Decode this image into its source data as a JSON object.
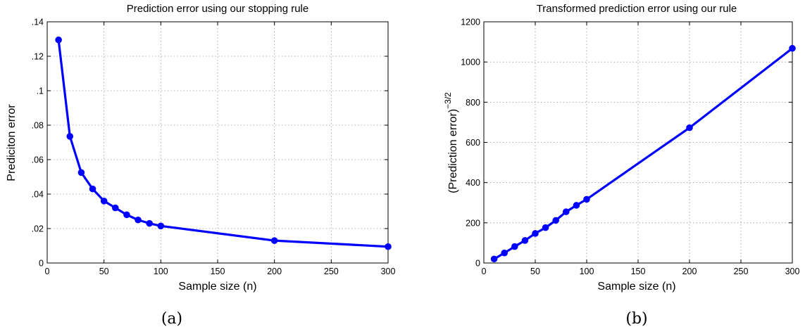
{
  "chart_data": [
    {
      "type": "line",
      "title": "Prediction error using our stopping rule",
      "xlabel": "Sample size (n)",
      "ylabel": "Prediciton error",
      "caption": "(a)",
      "xlim": [
        0,
        300
      ],
      "ylim": [
        0,
        0.14
      ],
      "xticks": [
        0,
        50,
        100,
        150,
        200,
        250,
        300
      ],
      "yticks": [
        0,
        0.02,
        0.04,
        0.06,
        0.08,
        0.1,
        0.12,
        0.14
      ],
      "grid": true,
      "color": "#0000ff",
      "x": [
        10,
        20,
        30,
        40,
        50,
        60,
        70,
        80,
        90,
        100,
        200,
        300
      ],
      "y": [
        0.1295,
        0.0735,
        0.0525,
        0.043,
        0.036,
        0.032,
        0.028,
        0.025,
        0.023,
        0.0215,
        0.013,
        0.0095
      ]
    },
    {
      "type": "line",
      "title": "Transformed prediction error using our rule",
      "xlabel": "Sample size (n)",
      "ylabel": "(Prediction error)",
      "ylabel_superscript": "−3/2",
      "caption": "(b)",
      "xlim": [
        0,
        300
      ],
      "ylim": [
        0,
        1200
      ],
      "xticks": [
        0,
        50,
        100,
        150,
        200,
        250,
        300
      ],
      "yticks": [
        0,
        200,
        400,
        600,
        800,
        1000,
        1200
      ],
      "grid": true,
      "color": "#0000ff",
      "x": [
        10,
        20,
        30,
        40,
        50,
        60,
        70,
        80,
        90,
        100,
        200,
        300
      ],
      "y": [
        20,
        50,
        82,
        112,
        147,
        176,
        212,
        255,
        287,
        317,
        673,
        1068
      ]
    }
  ]
}
